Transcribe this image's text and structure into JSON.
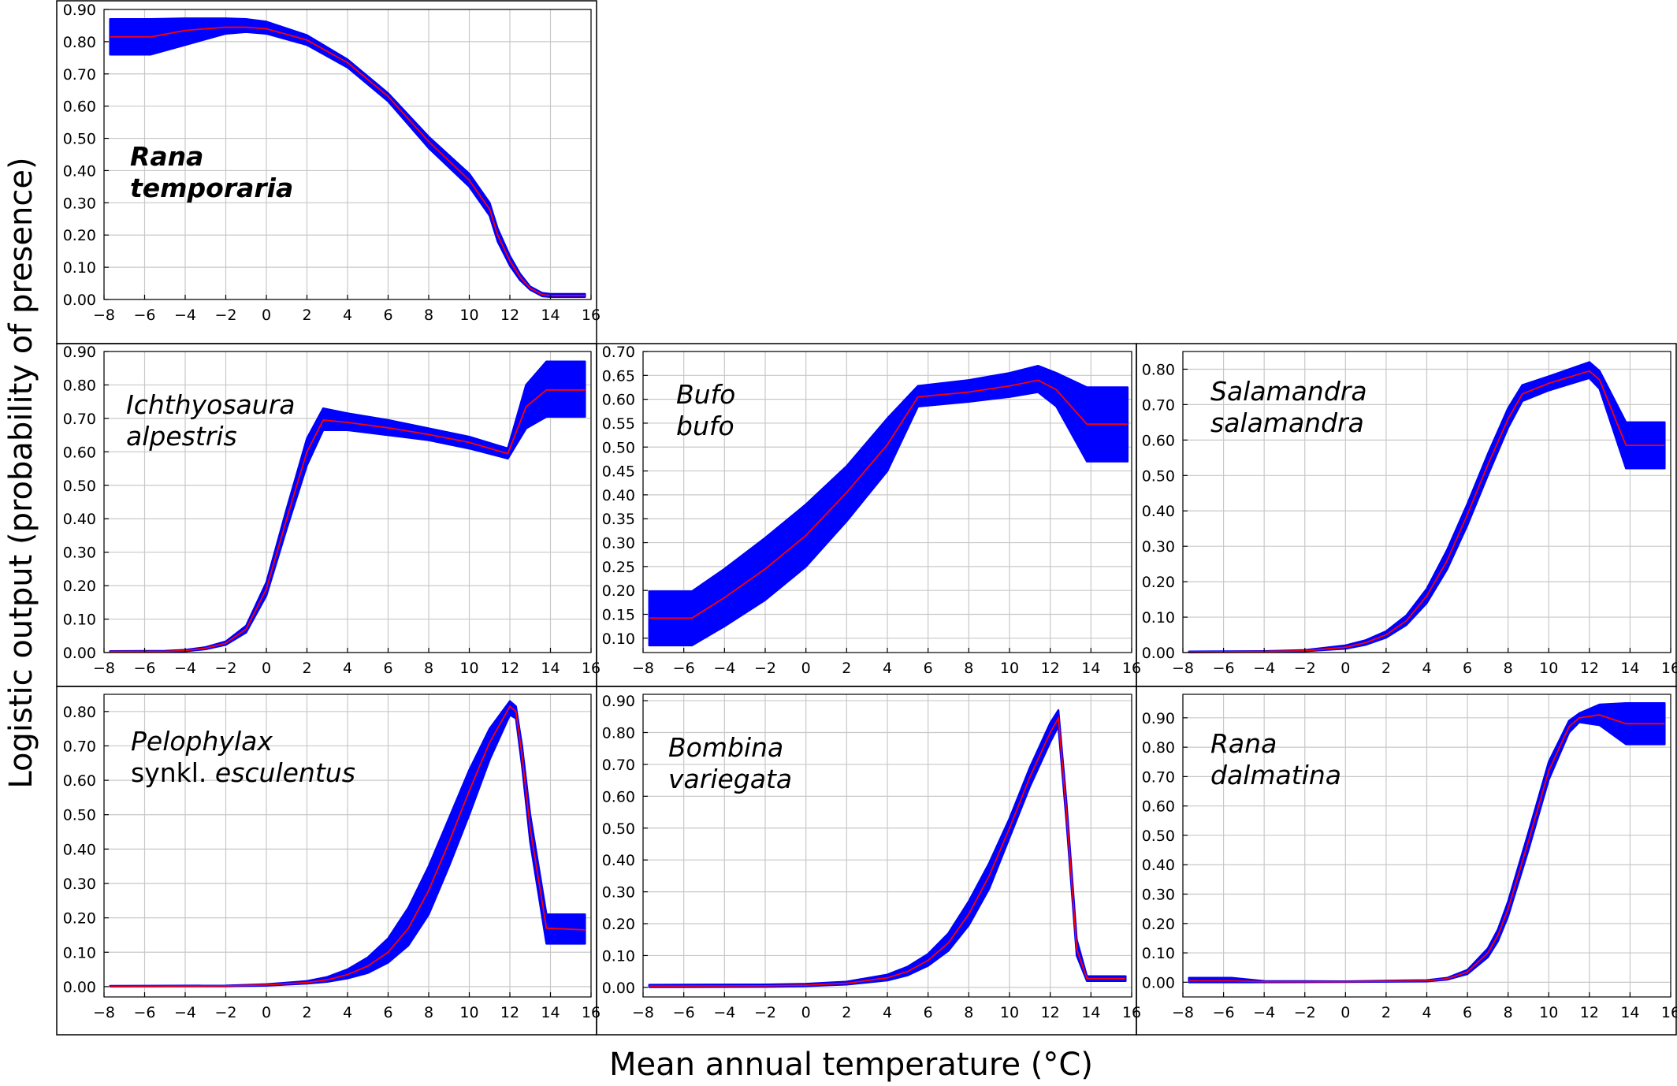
{
  "figure": {
    "ylabel": "Logistic output (probability of presence)",
    "xlabel": "Mean annual temperature (°C)",
    "colors": {
      "band": "#0000ff",
      "line": "#ff0000",
      "grid": "#c8c8c8",
      "frame": "#000000"
    }
  },
  "chart_data": [
    {
      "id": "rana-temporaria",
      "type": "line",
      "label_lines": [
        [
          {
            "text": "Rana",
            "italic": true,
            "bold": true
          }
        ],
        [
          {
            "text": "temporaria",
            "italic": true,
            "bold": true
          }
        ]
      ],
      "xlim": [
        -8,
        16
      ],
      "xticks": [
        -8,
        -6,
        -4,
        -2,
        0,
        2,
        4,
        6,
        8,
        10,
        12,
        14,
        16
      ],
      "xtick_labels": [
        "−8",
        "−6",
        "−4",
        "−2",
        "0",
        "2",
        "4",
        "6",
        "8",
        "10",
        "12",
        "14",
        "16"
      ],
      "ylim": [
        0,
        0.9
      ],
      "yticks": [
        0,
        0.1,
        0.2,
        0.3,
        0.4,
        0.5,
        0.6,
        0.7,
        0.8,
        0.9
      ],
      "ytick_labels": [
        "0.00",
        "0.10",
        "0.20",
        "0.30",
        "0.40",
        "0.50",
        "0.60",
        "0.70",
        "0.80",
        "0.90"
      ],
      "x": [
        -7.7,
        -5.7,
        -4,
        -2,
        -1,
        0,
        2,
        4,
        6,
        8,
        10,
        11,
        11.4,
        12,
        12.5,
        13,
        13.6,
        14,
        15.7
      ],
      "mean": [
        0.815,
        0.815,
        0.835,
        0.845,
        0.845,
        0.84,
        0.805,
        0.735,
        0.63,
        0.49,
        0.37,
        0.28,
        0.2,
        0.12,
        0.07,
        0.035,
        0.015,
        0.012,
        0.012
      ],
      "upper": [
        0.87,
        0.87,
        0.872,
        0.872,
        0.87,
        0.862,
        0.82,
        0.745,
        0.64,
        0.505,
        0.39,
        0.3,
        0.22,
        0.135,
        0.08,
        0.04,
        0.02,
        0.017,
        0.017
      ],
      "lower": [
        0.76,
        0.76,
        0.79,
        0.825,
        0.83,
        0.825,
        0.79,
        0.72,
        0.615,
        0.47,
        0.35,
        0.26,
        0.18,
        0.105,
        0.06,
        0.03,
        0.01,
        0.008,
        0.008
      ]
    },
    {
      "id": "ichthyosaura-alpestris",
      "type": "line",
      "label_lines": [
        [
          {
            "text": "Ichthyosaura",
            "italic": true,
            "bold": false
          }
        ],
        [
          {
            "text": "alpestris",
            "italic": true,
            "bold": false
          }
        ]
      ],
      "xlim": [
        -8,
        16
      ],
      "xticks": [
        -8,
        -6,
        -4,
        -2,
        0,
        2,
        4,
        6,
        8,
        10,
        12,
        14,
        16
      ],
      "xtick_labels": [
        "−8",
        "−6",
        "−4",
        "−2",
        "0",
        "2",
        "4",
        "6",
        "8",
        "10",
        "12",
        "14",
        "16"
      ],
      "ylim": [
        0,
        0.9
      ],
      "yticks": [
        0,
        0.1,
        0.2,
        0.3,
        0.4,
        0.5,
        0.6,
        0.7,
        0.8,
        0.9
      ],
      "ytick_labels": [
        "0.00",
        "0.10",
        "0.20",
        "0.30",
        "0.40",
        "0.50",
        "0.60",
        "0.70",
        "0.80",
        "0.90"
      ],
      "x": [
        -7.7,
        -5,
        -4,
        -3,
        -2,
        -1,
        0,
        1,
        2,
        2.8,
        4,
        6,
        8,
        10,
        11.9,
        12.8,
        13.8,
        15.7
      ],
      "mean": [
        0.003,
        0.003,
        0.006,
        0.013,
        0.028,
        0.07,
        0.19,
        0.4,
        0.6,
        0.695,
        0.688,
        0.672,
        0.652,
        0.628,
        0.595,
        0.735,
        0.785,
        0.785
      ],
      "upper": [
        0.004,
        0.005,
        0.008,
        0.016,
        0.033,
        0.08,
        0.21,
        0.43,
        0.64,
        0.73,
        0.715,
        0.695,
        0.67,
        0.645,
        0.61,
        0.8,
        0.87,
        0.87
      ],
      "lower": [
        0.002,
        0.002,
        0.004,
        0.01,
        0.023,
        0.06,
        0.17,
        0.37,
        0.56,
        0.665,
        0.665,
        0.65,
        0.635,
        0.61,
        0.58,
        0.67,
        0.705,
        0.705
      ]
    },
    {
      "id": "bufo-bufo",
      "type": "line",
      "label_lines": [
        [
          {
            "text": "Bufo",
            "italic": true,
            "bold": false
          }
        ],
        [
          {
            "text": "bufo",
            "italic": true,
            "bold": false
          }
        ]
      ],
      "xlim": [
        -8,
        16
      ],
      "xticks": [
        -8,
        -6,
        -4,
        -2,
        0,
        2,
        4,
        6,
        8,
        10,
        12,
        14,
        16
      ],
      "xtick_labels": [
        "−8",
        "−6",
        "−4",
        "−2",
        "0",
        "2",
        "4",
        "6",
        "8",
        "10",
        "12",
        "14",
        "16"
      ],
      "ylim": [
        0.07,
        0.7
      ],
      "yticks": [
        0.1,
        0.15,
        0.2,
        0.25,
        0.3,
        0.35,
        0.4,
        0.45,
        0.5,
        0.55,
        0.6,
        0.65,
        0.7
      ],
      "ytick_labels": [
        "0.10",
        "0.15",
        "0.20",
        "0.25",
        "0.30",
        "0.35",
        "0.40",
        "0.45",
        "0.50",
        "0.55",
        "0.60",
        "0.65",
        "0.70"
      ],
      "x": [
        -7.7,
        -5.6,
        -4,
        -2,
        0,
        2,
        4,
        5.5,
        8,
        10,
        11.4,
        12.3,
        13.8,
        15.8
      ],
      "mean": [
        0.142,
        0.142,
        0.185,
        0.245,
        0.315,
        0.405,
        0.505,
        0.605,
        0.615,
        0.628,
        0.64,
        0.62,
        0.548,
        0.548
      ],
      "upper": [
        0.198,
        0.198,
        0.245,
        0.31,
        0.38,
        0.46,
        0.56,
        0.628,
        0.64,
        0.655,
        0.67,
        0.655,
        0.625,
        0.625
      ],
      "lower": [
        0.085,
        0.085,
        0.125,
        0.18,
        0.25,
        0.345,
        0.45,
        0.585,
        0.595,
        0.605,
        0.615,
        0.585,
        0.47,
        0.47
      ]
    },
    {
      "id": "salamandra-salamandra",
      "type": "line",
      "label_lines": [
        [
          {
            "text": "Salamandra",
            "italic": true,
            "bold": false
          }
        ],
        [
          {
            "text": "salamandra",
            "italic": true,
            "bold": false
          }
        ]
      ],
      "xlim": [
        -8,
        16
      ],
      "xticks": [
        -8,
        -6,
        -4,
        -2,
        0,
        2,
        4,
        6,
        8,
        10,
        12,
        14,
        16
      ],
      "xtick_labels": [
        "−8",
        "−6",
        "−4",
        "−2",
        "0",
        "2",
        "4",
        "6",
        "8",
        "10",
        "12",
        "14",
        "16"
      ],
      "ylim": [
        0,
        0.85
      ],
      "yticks": [
        0,
        0.1,
        0.2,
        0.3,
        0.4,
        0.5,
        0.6,
        0.7,
        0.8
      ],
      "ytick_labels": [
        "0.00",
        "0.10",
        "0.20",
        "0.30",
        "0.40",
        "0.50",
        "0.60",
        "0.70",
        "0.80"
      ],
      "x": [
        -7.7,
        -4,
        -2,
        0,
        1,
        2,
        3,
        4,
        5,
        6,
        7,
        8,
        8.7,
        10,
        12,
        12.5,
        13.8,
        15.7
      ],
      "mean": [
        0.002,
        0.003,
        0.005,
        0.015,
        0.028,
        0.05,
        0.09,
        0.16,
        0.26,
        0.39,
        0.53,
        0.66,
        0.73,
        0.76,
        0.795,
        0.77,
        0.585,
        0.585
      ],
      "upper": [
        0.003,
        0.004,
        0.007,
        0.02,
        0.035,
        0.06,
        0.105,
        0.18,
        0.29,
        0.42,
        0.56,
        0.69,
        0.755,
        0.78,
        0.82,
        0.795,
        0.65,
        0.65
      ],
      "lower": [
        0.001,
        0.002,
        0.004,
        0.011,
        0.022,
        0.042,
        0.078,
        0.14,
        0.235,
        0.36,
        0.5,
        0.635,
        0.71,
        0.74,
        0.775,
        0.745,
        0.52,
        0.52
      ]
    },
    {
      "id": "pelophylax-esculentus",
      "type": "line",
      "label_lines": [
        [
          {
            "text": "Pelophylax",
            "italic": true,
            "bold": false
          }
        ],
        [
          {
            "text": "synkl. ",
            "italic": false,
            "bold": false
          },
          {
            "text": "esculentus",
            "italic": true,
            "bold": false
          }
        ]
      ],
      "xlim": [
        -8,
        16
      ],
      "xticks": [
        -8,
        -6,
        -4,
        -2,
        0,
        2,
        4,
        6,
        8,
        10,
        12,
        14,
        16
      ],
      "xtick_labels": [
        "−8",
        "−6",
        "−4",
        "−2",
        "0",
        "2",
        "4",
        "6",
        "8",
        "10",
        "12",
        "14",
        "16"
      ],
      "ylim": [
        -0.03,
        0.85
      ],
      "yticks": [
        0,
        0.1,
        0.2,
        0.3,
        0.4,
        0.5,
        0.6,
        0.7,
        0.8
      ],
      "ytick_labels": [
        "0.00",
        "0.10",
        "0.20",
        "0.30",
        "0.40",
        "0.50",
        "0.60",
        "0.70",
        "0.80"
      ],
      "x": [
        -7.7,
        -2,
        0,
        2,
        3,
        4,
        5,
        6,
        7,
        8,
        9,
        10,
        11,
        12,
        12.3,
        12.6,
        13,
        13.8,
        15.7
      ],
      "mean": [
        0.001,
        0.002,
        0.005,
        0.012,
        0.02,
        0.035,
        0.06,
        0.1,
        0.17,
        0.28,
        0.42,
        0.57,
        0.71,
        0.815,
        0.8,
        0.67,
        0.46,
        0.17,
        0.165
      ],
      "upper": [
        0.002,
        0.003,
        0.007,
        0.016,
        0.028,
        0.05,
        0.085,
        0.14,
        0.23,
        0.35,
        0.49,
        0.63,
        0.75,
        0.83,
        0.815,
        0.7,
        0.5,
        0.21,
        0.21
      ],
      "lower": [
        0.0005,
        0.001,
        0.003,
        0.009,
        0.014,
        0.024,
        0.04,
        0.07,
        0.12,
        0.21,
        0.35,
        0.5,
        0.66,
        0.79,
        0.78,
        0.64,
        0.42,
        0.125,
        0.125
      ]
    },
    {
      "id": "bombina-variegata",
      "type": "line",
      "label_lines": [
        [
          {
            "text": "Bombina",
            "italic": true,
            "bold": false
          }
        ],
        [
          {
            "text": "variegata",
            "italic": true,
            "bold": false
          }
        ]
      ],
      "xlim": [
        -8,
        16
      ],
      "xticks": [
        -8,
        -6,
        -4,
        -2,
        0,
        2,
        4,
        6,
        8,
        10,
        12,
        14,
        16
      ],
      "xtick_labels": [
        "−8",
        "−6",
        "−4",
        "−2",
        "0",
        "2",
        "4",
        "6",
        "8",
        "10",
        "12",
        "14",
        "16"
      ],
      "ylim": [
        -0.03,
        0.92
      ],
      "yticks": [
        0,
        0.1,
        0.2,
        0.3,
        0.4,
        0.5,
        0.6,
        0.7,
        0.8,
        0.9
      ],
      "ytick_labels": [
        "0.00",
        "0.10",
        "0.20",
        "0.30",
        "0.40",
        "0.50",
        "0.60",
        "0.70",
        "0.80",
        "0.90"
      ],
      "x": [
        -7.7,
        -2,
        0,
        2,
        4,
        5,
        6,
        7,
        8,
        9,
        10,
        11,
        12,
        12.4,
        12.8,
        13.3,
        13.8,
        15.7
      ],
      "mean": [
        0.004,
        0.005,
        0.007,
        0.013,
        0.03,
        0.05,
        0.085,
        0.14,
        0.23,
        0.35,
        0.5,
        0.66,
        0.8,
        0.845,
        0.55,
        0.12,
        0.028,
        0.028
      ],
      "upper": [
        0.008,
        0.009,
        0.011,
        0.018,
        0.04,
        0.065,
        0.105,
        0.17,
        0.27,
        0.39,
        0.53,
        0.69,
        0.83,
        0.87,
        0.58,
        0.15,
        0.035,
        0.035
      ],
      "lower": [
        0.001,
        0.002,
        0.004,
        0.009,
        0.022,
        0.038,
        0.068,
        0.115,
        0.195,
        0.31,
        0.47,
        0.63,
        0.77,
        0.82,
        0.52,
        0.1,
        0.02,
        0.02
      ]
    },
    {
      "id": "rana-dalmatina",
      "type": "line",
      "label_lines": [
        [
          {
            "text": "Rana",
            "italic": true,
            "bold": false
          }
        ],
        [
          {
            "text": "dalmatina",
            "italic": true,
            "bold": false
          }
        ]
      ],
      "xlim": [
        -8,
        16
      ],
      "xticks": [
        -8,
        -6,
        -4,
        -2,
        0,
        2,
        4,
        6,
        8,
        10,
        12,
        14,
        16
      ],
      "xtick_labels": [
        "−8",
        "−6",
        "−4",
        "−2",
        "0",
        "2",
        "4",
        "6",
        "8",
        "10",
        "12",
        "14",
        "16"
      ],
      "ylim": [
        -0.05,
        0.98
      ],
      "yticks": [
        0,
        0.1,
        0.2,
        0.3,
        0.4,
        0.5,
        0.6,
        0.7,
        0.8,
        0.9
      ],
      "ytick_labels": [
        "0.00",
        "0.10",
        "0.20",
        "0.30",
        "0.40",
        "0.50",
        "0.60",
        "0.70",
        "0.80",
        "0.90"
      ],
      "x": [
        -7.7,
        -5.6,
        -4,
        0,
        4,
        5,
        6,
        7,
        7.5,
        8,
        9,
        10,
        11,
        11.5,
        12.5,
        13.8,
        15.7
      ],
      "mean": [
        0.005,
        0.005,
        0.002,
        0.002,
        0.005,
        0.012,
        0.035,
        0.1,
        0.16,
        0.25,
        0.48,
        0.72,
        0.87,
        0.9,
        0.91,
        0.88,
        0.88
      ],
      "upper": [
        0.015,
        0.015,
        0.004,
        0.003,
        0.007,
        0.015,
        0.042,
        0.115,
        0.18,
        0.275,
        0.51,
        0.75,
        0.89,
        0.915,
        0.945,
        0.95,
        0.95
      ],
      "lower": [
        0.0,
        0.0,
        0.0,
        0.001,
        0.003,
        0.009,
        0.028,
        0.085,
        0.14,
        0.225,
        0.45,
        0.69,
        0.85,
        0.885,
        0.875,
        0.81,
        0.81
      ]
    }
  ]
}
